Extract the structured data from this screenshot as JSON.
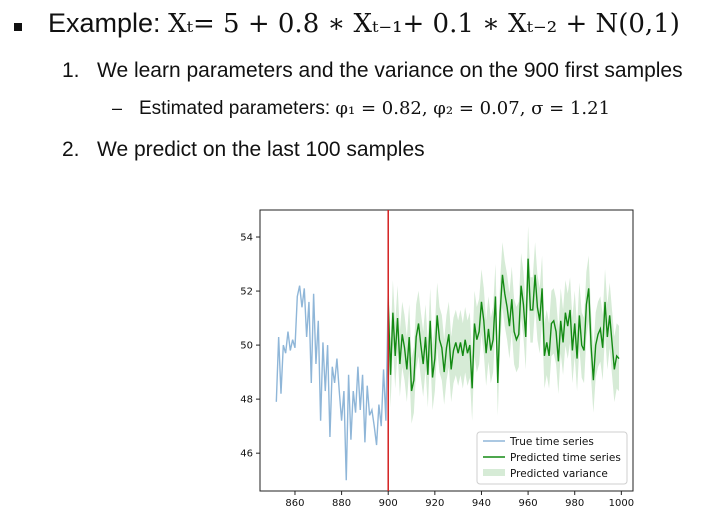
{
  "slide": {
    "line1_prefix": "Example: ",
    "line1_math": "Xₜ= 5 + 0.8 ∗  Xₜ₋₁+ 0.1 ∗  Xₜ₋₂ + N(0,1)",
    "item1_num": "1.",
    "item1_text": "We learn parameters and the variance on the 900 first samples",
    "sub_dash": "–",
    "sub_prefix": "Estimated parameters: ",
    "sub_math": "φ₁ = 0.82, φ₂ = 0.07, σ = 1.21",
    "item2_num": "2.",
    "item2_text": "We predict on the last 100 samples"
  },
  "chart_data": {
    "type": "line",
    "xlim": [
      845,
      1005
    ],
    "ylim": [
      44.6,
      55.0
    ],
    "xticks": [
      860,
      880,
      900,
      920,
      940,
      960,
      980,
      1000
    ],
    "yticks": [
      46,
      48,
      50,
      52,
      54
    ],
    "vline_x": 900,
    "legend_position": "lower-right",
    "colors": {
      "true": "#8fb6d8",
      "pred": "#138a13",
      "variance": "#d6ebd6",
      "vline": "#d42020"
    },
    "series": [
      {
        "name": "True time series",
        "x": [
          852,
          853,
          854,
          855,
          856,
          857,
          858,
          859,
          860,
          861,
          862,
          863,
          864,
          865,
          866,
          867,
          868,
          869,
          870,
          871,
          872,
          873,
          874,
          875,
          876,
          877,
          878,
          879,
          880,
          881,
          882,
          883,
          884,
          885,
          886,
          887,
          888,
          889,
          890,
          891,
          892,
          893,
          894,
          895,
          896,
          897,
          898,
          899,
          900
        ],
        "values": [
          47.9,
          50.3,
          48.2,
          50.0,
          49.7,
          50.5,
          49.8,
          50.2,
          49.9,
          51.8,
          52.2,
          51.4,
          52.1,
          50.3,
          51.6,
          48.6,
          51.9,
          49.3,
          50.9,
          47.2,
          50.1,
          48.3,
          50.0,
          46.6,
          49.2,
          48.6,
          49.5,
          48.3,
          47.2,
          48.3,
          45.0,
          48.9,
          46.5,
          48.3,
          47.5,
          49.2,
          47.6,
          48.9,
          46.4,
          48.5,
          47.4,
          47.6,
          47.0,
          46.3,
          47.8,
          47.0,
          49.1,
          47.2,
          51.9
        ]
      },
      {
        "name": "Predicted time series",
        "x": [
          900,
          901,
          902,
          903,
          904,
          905,
          906,
          907,
          908,
          909,
          910,
          911,
          912,
          913,
          914,
          915,
          916,
          917,
          918,
          919,
          920,
          921,
          922,
          923,
          924,
          925,
          926,
          927,
          928,
          929,
          930,
          931,
          932,
          933,
          934,
          935,
          936,
          937,
          938,
          939,
          940,
          941,
          942,
          943,
          944,
          945,
          946,
          947,
          948,
          949,
          950,
          951,
          952,
          953,
          954,
          955,
          956,
          957,
          958,
          959,
          960,
          961,
          962,
          963,
          964,
          965,
          966,
          967,
          968,
          969,
          970,
          971,
          972,
          973,
          974,
          975,
          976,
          977,
          978,
          979,
          980,
          981,
          982,
          983,
          984,
          985,
          986,
          987,
          988,
          989,
          990,
          991,
          992,
          993,
          994,
          995,
          996,
          997,
          998,
          999
        ],
        "values": [
          51.6,
          48.9,
          51.2,
          49.6,
          51.0,
          49.3,
          50.4,
          49.9,
          49.1,
          50.3,
          48.3,
          48.7,
          50.3,
          50.8,
          50.0,
          49.3,
          50.3,
          48.9,
          50.9,
          48.8,
          49.5,
          51.1,
          50.2,
          49.9,
          49.0,
          49.9,
          50.4,
          49.1,
          49.8,
          50.1,
          49.7,
          50.1,
          49.6,
          50.2,
          49.7,
          50.0,
          48.4,
          50.8,
          50.2,
          50.5,
          51.6,
          50.9,
          49.7,
          50.6,
          49.8,
          50.2,
          51.8,
          48.6,
          51.2,
          52.6,
          51.9,
          51.4,
          50.7,
          51.7,
          50.5,
          50.2,
          50.4,
          52.2,
          51.5,
          50.3,
          53.2,
          51.3,
          51.3,
          52.6,
          51.4,
          50.9,
          52.1,
          49.6,
          50.1,
          49.6,
          50.8,
          50.9,
          50.5,
          49.4,
          50.9,
          50.1,
          51.2,
          50.7,
          51.3,
          49.8,
          50.8,
          49.5,
          51.1,
          50.0,
          49.8,
          51.5,
          52.1,
          50.0,
          48.7,
          50.0,
          50.4,
          50.6,
          49.9,
          51.6,
          50.3,
          51.1,
          50.1,
          49.1,
          49.6,
          49.5
        ]
      },
      {
        "name": "Predicted variance",
        "band": 1.21
      }
    ]
  }
}
